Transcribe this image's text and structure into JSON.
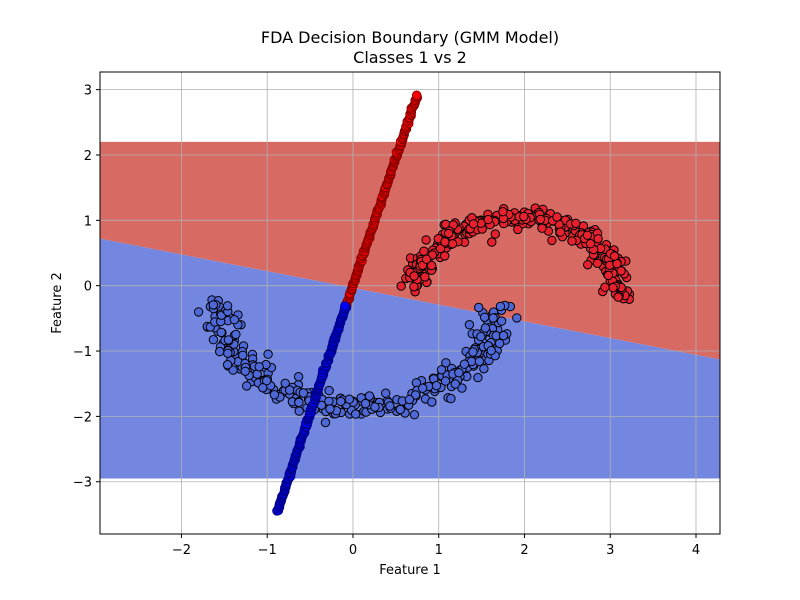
{
  "chart_data": {
    "type": "scatter",
    "title": "FDA Decision Boundary (GMM Model)",
    "subtitle": "Classes 1 vs 2",
    "xlabel": "Feature 1",
    "ylabel": "Feature 2",
    "xlim": [
      -2.95,
      4.28
    ],
    "ylim": [
      -3.8,
      3.27
    ],
    "x_ticks": [
      -2,
      -1,
      0,
      1,
      2,
      3,
      4
    ],
    "y_ticks": [
      -3,
      -2,
      -1,
      0,
      1,
      2,
      3
    ],
    "x_tick_labels": [
      "−2",
      "−1",
      "0",
      "1",
      "2",
      "3",
      "4"
    ],
    "y_tick_labels": [
      "−3",
      "−2",
      "−1",
      "0",
      "1",
      "2",
      "3"
    ],
    "grid": true,
    "decision_region": {
      "y_range": [
        -2.95,
        2.2
      ],
      "boundary_line": [
        [
          -2.95,
          0.72
        ],
        [
          4.28,
          -1.13
        ]
      ],
      "upper_color": "#d86a64",
      "lower_color": "#7387e0"
    },
    "series": [
      {
        "class": 1,
        "color": "#e8212e",
        "edge_color": "#000000",
        "shape": "upper-moon",
        "params": {
          "cx": 1.9,
          "cy": -0.15,
          "r": 1.2,
          "theta_start": 0,
          "theta_end": 3.05,
          "count": 320,
          "spread": 0.07
        }
      },
      {
        "class": 1,
        "color": "#ff0000",
        "edge_color": "#8a0000",
        "shape": "line-segment",
        "params": {
          "x0": -0.08,
          "y0": -0.3,
          "x1": 0.75,
          "y1": 2.92,
          "count": 170
        }
      },
      {
        "class": 2,
        "color": "#4f68d8",
        "edge_color": "#000000",
        "shape": "lower-moon",
        "params": {
          "cx": 0.05,
          "cy": -0.2,
          "r": 1.65,
          "theta_start": 3.15,
          "theta_end": 6.25,
          "count": 320,
          "spread": 0.09
        }
      },
      {
        "class": 2,
        "color": "#0000ff",
        "edge_color": "#00008a",
        "shape": "line-segment",
        "params": {
          "x0": -0.88,
          "y0": -3.45,
          "x1": -0.08,
          "y1": -0.3,
          "count": 190
        }
      }
    ],
    "marker": "circle",
    "colors": {
      "upper_region": "#d86a64",
      "lower_region": "#7387e0",
      "grid": "#b0b0b0"
    }
  }
}
